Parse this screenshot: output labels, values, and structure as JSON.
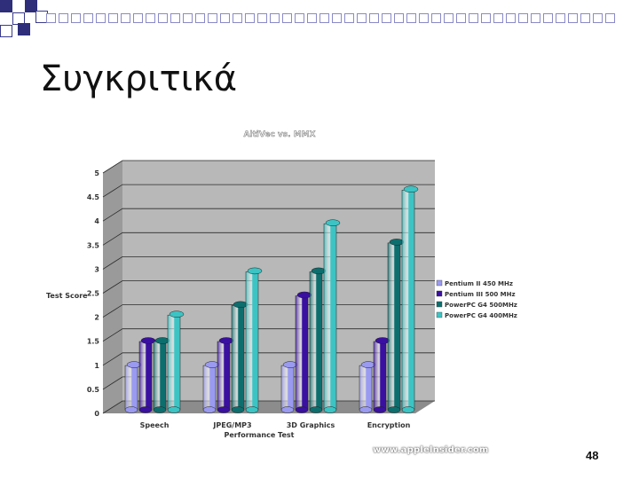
{
  "slide": {
    "title": "Συγκριτικά",
    "page_number": "48",
    "watermark": "www.applelnsider.com"
  },
  "chart_data": {
    "type": "bar",
    "title": "AltiVec vs. MMX",
    "xlabel": "Performance Test",
    "ylabel": "Test Score",
    "ylim": [
      0,
      5
    ],
    "yticks": [
      "0",
      "0.5",
      "1",
      "1.5",
      "2",
      "2.5",
      "3",
      "3.5",
      "4",
      "4.5",
      "5"
    ],
    "grid": true,
    "legend": "right",
    "categories": [
      "Speech",
      "JPEG/MP3",
      "3D Graphics",
      "Encryption"
    ],
    "series": [
      {
        "name": "Pentium II 450 MHz",
        "color": "#9a9af0",
        "values": [
          1.05,
          1.05,
          1.05,
          1.05
        ]
      },
      {
        "name": "Pentium III 500 MHz",
        "color": "#3a10a0",
        "values": [
          1.55,
          1.55,
          2.5,
          1.55
        ]
      },
      {
        "name": "PowerPC G4 500MHz",
        "color": "#0d6e6e",
        "values": [
          1.55,
          2.3,
          3.0,
          3.6
        ]
      },
      {
        "name": "PowerPC G4 400MHz",
        "color": "#3cc4c4",
        "values": [
          2.1,
          3.0,
          4.0,
          4.7
        ]
      }
    ]
  }
}
